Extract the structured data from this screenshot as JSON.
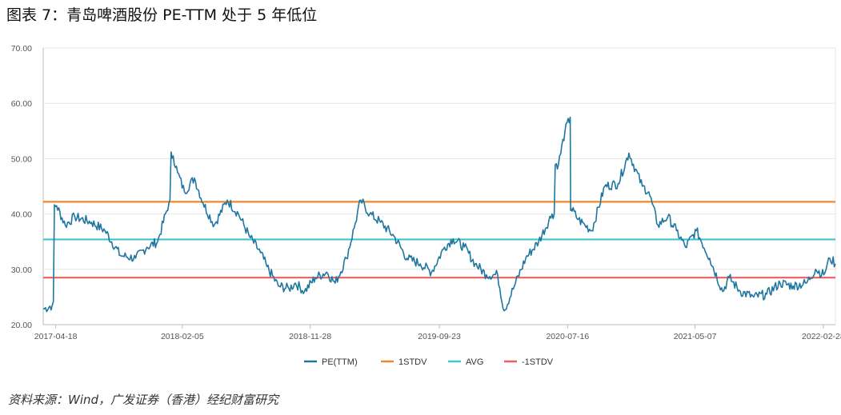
{
  "figure": {
    "title": "图表 7：青岛啤酒股份 PE-TTM 处于 5 年低位",
    "source": "资料来源：Wind，广发证券（香港）经纪财富研究"
  },
  "chart_data": {
    "type": "line",
    "ylim": [
      20,
      70
    ],
    "yticks": [
      "70.00",
      "60.00",
      "50.00",
      "40.00",
      "30.00",
      "20.00"
    ],
    "ytick_values": [
      70,
      60,
      50,
      40,
      30,
      20
    ],
    "xticks": [
      "2017-04-18",
      "2018-02-05",
      "2018-11-28",
      "2019-09-23",
      "2020-07-16",
      "2021-05-07",
      "2022-02-28"
    ],
    "grid": "horizontal",
    "legend_placement": "bottom-center",
    "x": [
      "2017-03-20",
      "2017-04-10",
      "2017-04-20",
      "2017-05-10",
      "2017-06-01",
      "2017-07-10",
      "2017-08-10",
      "2017-09-15",
      "2017-10-20",
      "2017-11-15",
      "2017-12-10",
      "2018-01-05",
      "2018-01-15",
      "2018-01-25",
      "2018-02-10",
      "2018-03-05",
      "2018-03-25",
      "2018-04-20",
      "2018-05-20",
      "2018-06-15",
      "2018-07-10",
      "2018-08-05",
      "2018-08-20",
      "2018-09-15",
      "2018-10-10",
      "2018-10-25",
      "2018-11-15",
      "2018-12-10",
      "2019-01-05",
      "2019-01-25",
      "2019-02-20",
      "2019-03-10",
      "2019-03-25",
      "2019-04-15",
      "2019-05-10",
      "2019-06-10",
      "2019-07-10",
      "2019-08-10",
      "2019-09-05",
      "2019-10-05",
      "2019-10-25",
      "2019-11-20",
      "2019-12-15",
      "2020-01-10",
      "2020-02-05",
      "2020-02-20",
      "2020-03-15",
      "2020-04-10",
      "2020-05-10",
      "2020-06-10",
      "2020-06-25",
      "2020-07-10",
      "2020-07-22",
      "2020-07-24",
      "2020-08-10",
      "2020-08-25",
      "2020-09-10",
      "2020-10-10",
      "2020-11-10",
      "2020-12-05",
      "2021-01-05",
      "2021-01-20",
      "2021-02-10",
      "2021-03-05",
      "2021-03-25",
      "2021-04-15",
      "2021-05-10",
      "2021-06-10",
      "2021-07-10",
      "2021-07-25",
      "2021-08-20",
      "2021-09-20",
      "2021-10-20",
      "2021-11-20",
      "2021-12-20",
      "2022-01-20",
      "2022-02-10",
      "2022-03-01",
      "2022-03-15",
      "2022-03-28"
    ],
    "series": [
      {
        "name": "PE(TTM)",
        "color": "#1f77a0",
        "values": [
          22.8,
          23.5,
          41.5,
          38.0,
          39.5,
          38.5,
          37.0,
          32.5,
          32.0,
          34.0,
          35.0,
          42.0,
          50.5,
          47.5,
          44.0,
          46.5,
          42.0,
          38.0,
          42.5,
          40.0,
          36.0,
          33.0,
          30.5,
          27.0,
          26.5,
          27.5,
          26.0,
          28.5,
          29.5,
          27.5,
          32.0,
          37.5,
          42.5,
          40.0,
          38.5,
          36.0,
          32.0,
          31.0,
          29.5,
          34.0,
          35.5,
          34.0,
          31.0,
          29.0,
          29.0,
          22.5,
          27.0,
          32.0,
          35.0,
          40.0,
          49.0,
          55.0,
          57.5,
          41.0,
          39.0,
          38.0,
          37.0,
          45.0,
          45.5,
          51.0,
          45.0,
          44.0,
          38.0,
          39.5,
          37.0,
          34.0,
          37.0,
          32.0,
          26.0,
          28.5,
          26.0,
          25.0,
          25.5,
          27.5,
          27.0,
          27.5,
          30.0,
          29.0,
          32.0,
          31.0
        ]
      },
      {
        "name": "1STDV",
        "color": "#f0892a",
        "constant": 42.2
      },
      {
        "name": "AVG",
        "color": "#46c1cf",
        "constant": 35.4
      },
      {
        "name": "-1STDV",
        "color": "#e9605f",
        "constant": 28.5
      }
    ]
  }
}
